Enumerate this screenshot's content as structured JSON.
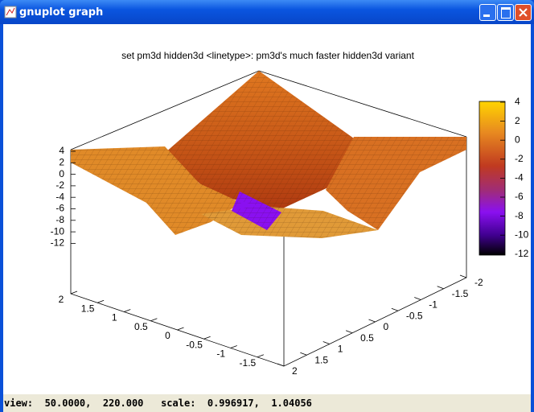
{
  "window": {
    "title": "gnuplot graph"
  },
  "plot": {
    "title": "set pm3d hidden3d <linetype>: pm3d's much faster hidden3d variant",
    "z_ticks": [
      "4",
      "2",
      "0",
      "-2",
      "-4",
      "-6",
      "-8",
      "-10",
      "-12"
    ],
    "colorbar_ticks": [
      "4",
      "2",
      "0",
      "-2",
      "-4",
      "-6",
      "-8",
      "-10",
      "-12"
    ],
    "x_ticks": [
      "2",
      "1.5",
      "1",
      "0.5",
      "0",
      "-0.5",
      "-1",
      "-1.5"
    ],
    "y_ticks": [
      "2",
      "1.5",
      "1",
      "0.5",
      "0",
      "-0.5",
      "-1",
      "-1.5",
      "-2"
    ]
  },
  "status_bar": {
    "text": "view:  50.0000,  220.000   scale:  0.996917,  1.04056"
  }
}
